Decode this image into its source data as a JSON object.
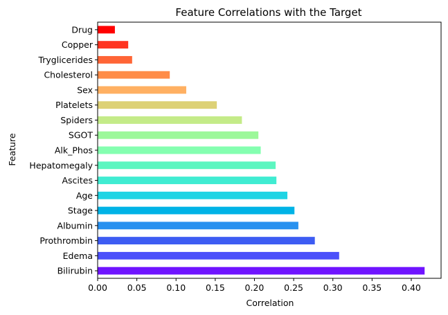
{
  "chart_data": {
    "type": "bar",
    "orientation": "horizontal",
    "title": "Feature Correlations with the Target",
    "xlabel": "Correlation",
    "ylabel": "Feature",
    "xlim": [
      0.0,
      0.438
    ],
    "xticks": [
      "0.00",
      "0.05",
      "0.10",
      "0.15",
      "0.20",
      "0.25",
      "0.30",
      "0.35",
      "0.40"
    ],
    "grid": false,
    "legend": "none",
    "categories": [
      "Bilirubin",
      "Edema",
      "Prothrombin",
      "Albumin",
      "Stage",
      "Age",
      "Ascites",
      "Hepatomegaly",
      "Alk_Phos",
      "SGOT",
      "Spiders",
      "Platelets",
      "Sex",
      "Cholesterol",
      "Tryglicerides",
      "Copper",
      "Drug"
    ],
    "values": [
      0.417,
      0.308,
      0.277,
      0.256,
      0.251,
      0.242,
      0.228,
      0.227,
      0.208,
      0.205,
      0.184,
      0.152,
      0.113,
      0.092,
      0.044,
      0.039,
      0.022
    ],
    "colors": [
      "#6f14ff",
      "#4b50fa",
      "#3d5cf3",
      "#2891ef",
      "#00b3e6",
      "#1fd4e4",
      "#40ecd2",
      "#5cf6c0",
      "#84ffb0",
      "#9cf89a",
      "#c4eb88",
      "#ddd176",
      "#ffb062",
      "#ff8c48",
      "#ff6536",
      "#ff3420",
      "#ff0000"
    ]
  }
}
